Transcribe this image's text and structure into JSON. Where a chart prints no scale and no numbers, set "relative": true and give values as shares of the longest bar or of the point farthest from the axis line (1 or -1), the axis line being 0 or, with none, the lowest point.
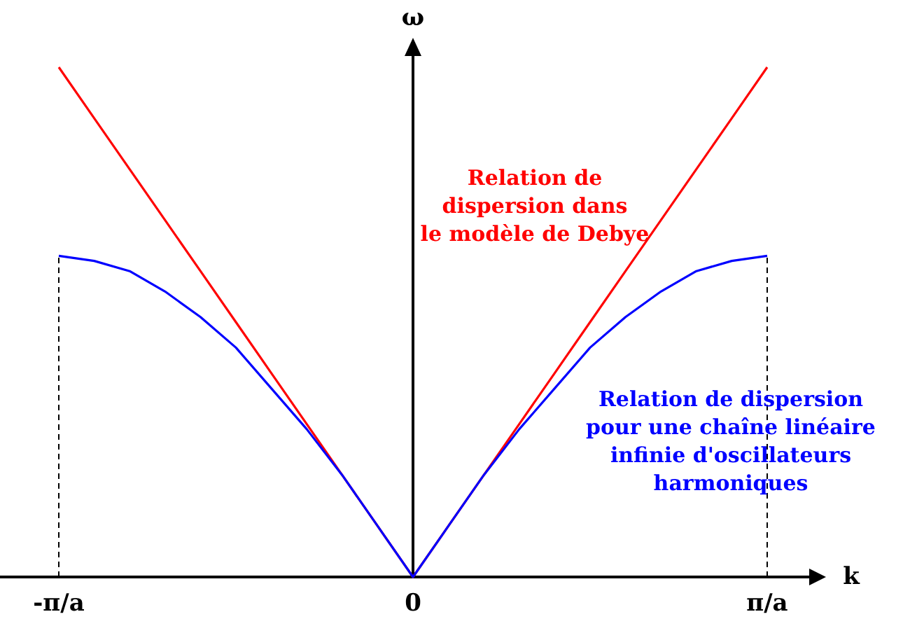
{
  "chart_data": {
    "type": "line",
    "relative": true,
    "xlabel": "k",
    "ylabel": "ω",
    "categories": [
      "-π/a",
      null,
      null,
      null,
      null,
      null,
      null,
      null,
      null,
      null,
      "0",
      null,
      null,
      null,
      null,
      null,
      null,
      null,
      null,
      null,
      "π/a"
    ],
    "series": [
      {
        "name": "Relation de\ndispersion dans\nle modèle de Debye",
        "color": "#ff0000",
        "values": [
          1,
          0.9,
          0.8,
          0.7,
          0.6,
          0.5,
          0.4,
          0.3,
          0.2,
          0.1,
          0,
          0.1,
          0.2,
          0.3,
          0.4,
          0.5,
          0.6,
          0.7,
          0.8,
          0.9,
          1
        ]
      },
      {
        "name": "Relation de dispersion\npour une chaîne linéaire\ninfinie d'oscillateurs\nharmoniques",
        "color": "#0000ff",
        "values": [
          0.63,
          0.62,
          0.6,
          0.56,
          0.51,
          0.45,
          0.37,
          0.29,
          0.2,
          0.1,
          0,
          0.1,
          0.2,
          0.29,
          0.37,
          0.45,
          0.51,
          0.56,
          0.6,
          0.62,
          0.63
        ]
      }
    ],
    "ref_lines": [
      {
        "axis": "x",
        "value": "-π/a",
        "line_style": "dashed",
        "color": "#000000"
      },
      {
        "axis": "x",
        "value": "π/a",
        "line_style": "dashed",
        "color": "#000000"
      }
    ],
    "legend": false,
    "marker": "none",
    "line_style": "solid"
  }
}
